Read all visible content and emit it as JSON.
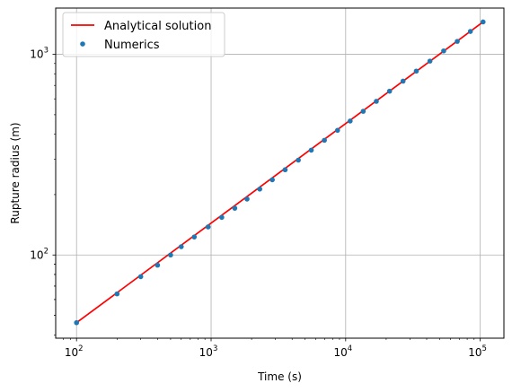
{
  "chart_data": {
    "type": "line",
    "title": "",
    "xlabel": "Time (s)",
    "ylabel": "Rupture radius (m)",
    "xscale": "log",
    "yscale": "log",
    "xlim": [
      70,
      150000
    ],
    "ylim": [
      38.5,
      1700
    ],
    "grid": true,
    "legend_position": "top-left",
    "x_ticks": [
      {
        "value": 100,
        "base": "10",
        "exp": "2"
      },
      {
        "value": 1000,
        "base": "10",
        "exp": "3"
      },
      {
        "value": 10000,
        "base": "10",
        "exp": "4"
      },
      {
        "value": 100000,
        "base": "10",
        "exp": "5"
      }
    ],
    "y_ticks": [
      {
        "value": 100,
        "base": "10",
        "exp": "2"
      },
      {
        "value": 1000,
        "base": "10",
        "exp": "3"
      }
    ],
    "series": [
      {
        "name": "Analytical solution",
        "kind": "line",
        "color": "#ff0000",
        "x": [
          100,
          105000
        ],
        "y": [
          46,
          1450
        ]
      },
      {
        "name": "Numerics",
        "kind": "scatter",
        "color": "#1f77b4",
        "x": [
          100,
          200,
          300,
          400,
          500,
          600,
          750,
          950,
          1200,
          1500,
          1850,
          2300,
          2850,
          3550,
          4450,
          5550,
          6950,
          8700,
          10800,
          13500,
          16900,
          21200,
          26700,
          33500,
          42300,
          53500,
          67500,
          84500,
          105000
        ],
        "y": [
          46,
          64,
          78,
          89,
          100,
          110,
          123,
          138,
          154,
          171,
          190,
          213,
          237,
          266,
          297,
          333,
          373,
          418,
          465,
          520,
          583,
          655,
          735,
          825,
          925,
          1040,
          1160,
          1300,
          1450
        ]
      }
    ]
  }
}
